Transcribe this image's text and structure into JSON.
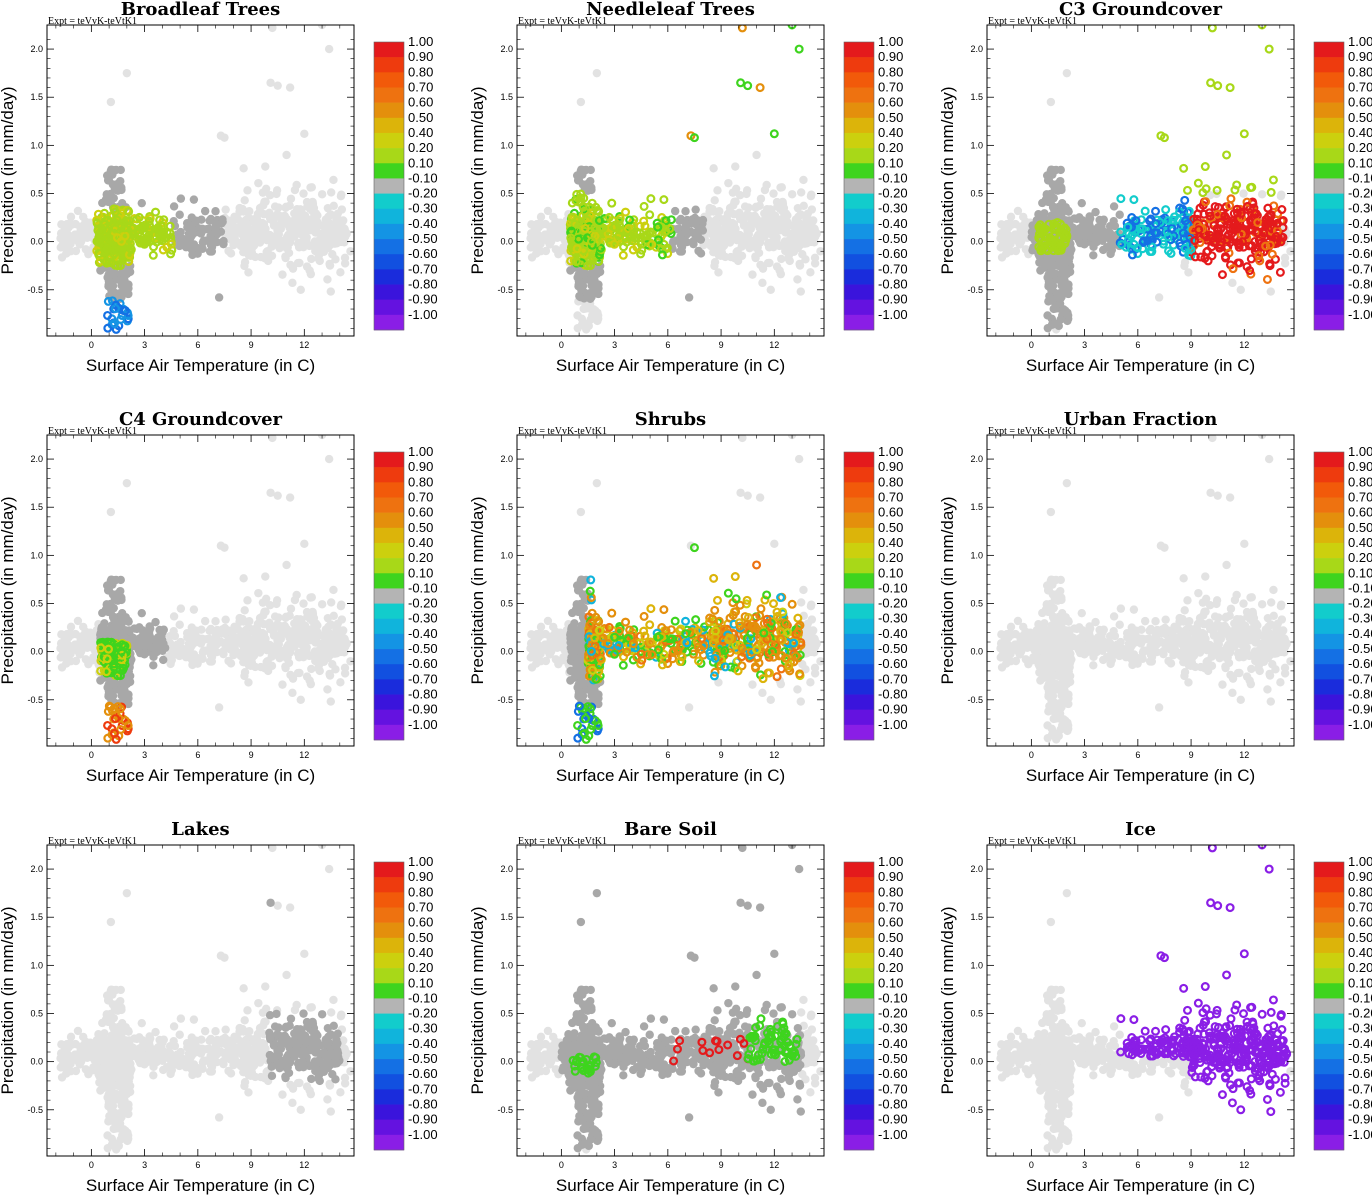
{
  "figure": {
    "expt_label": "Expt = teVvK-teVtK1",
    "xlabel": "Surface Air Temperature (in C)",
    "ylabel": "Precipitation (in mm/day)"
  },
  "colorbar": {
    "labels": [
      "1.00",
      "0.90",
      "0.80",
      "0.70",
      "0.60",
      "0.50",
      "0.40",
      "0.20",
      "0.10",
      "-0.10",
      "-0.20",
      "-0.30",
      "-0.40",
      "-0.50",
      "-0.60",
      "-0.70",
      "-0.80",
      "-0.90",
      "-1.00"
    ],
    "colors": [
      "#e41a1c",
      "#ee3b0e",
      "#f25a0a",
      "#ee7210",
      "#e48f0c",
      "#dcb40a",
      "#ccd00e",
      "#a8d818",
      "#3ed41e",
      "#b4b4b4",
      "#12cccc",
      "#10b4dc",
      "#1494e4",
      "#1470e4",
      "#1250e0",
      "#1a2cdc",
      "#3a14dc",
      "#6412e0",
      "#8a1ee6"
    ]
  },
  "chart_data": [
    {
      "type": "scatter",
      "title": "Broadleaf Trees",
      "xlabel": "Surface Air Temperature (in C)",
      "ylabel": "Precipitation (in mm/day)",
      "xlim": [
        -2.5,
        14.8
      ],
      "ylim": [
        -0.98,
        2.25
      ],
      "xticks": [
        0,
        3,
        6,
        9,
        12
      ],
      "yticks": [
        -0.5,
        0.0,
        0.5,
        1.0,
        1.5,
        2.0
      ],
      "coloring": {
        "colored_points": "cluster near 0–5 C, -0.2–0.3 mm/day; few cyan/blue points below -0.6",
        "dominant_class": "0.20"
      }
    },
    {
      "type": "scatter",
      "title": "Needleleaf Trees",
      "xlabel": "Surface Air Temperature (in C)",
      "ylabel": "Precipitation (in mm/day)",
      "xlim": [
        -2.5,
        14.8
      ],
      "ylim": [
        -0.98,
        2.25
      ],
      "xticks": [
        0,
        3,
        6,
        9,
        12
      ],
      "yticks": [
        -0.5,
        0.0,
        0.5,
        1.0,
        1.5,
        2.0
      ],
      "coloring": {
        "dominant_class": "0.20"
      }
    },
    {
      "type": "scatter",
      "title": "C3 Groundcover",
      "xlabel": "Surface Air Temperature (in C)",
      "ylabel": "Precipitation (in mm/day)",
      "xlim": [
        -2.5,
        14.8
      ],
      "ylim": [
        -0.98,
        2.25
      ],
      "xticks": [
        0,
        3,
        6,
        9,
        12
      ],
      "yticks": [
        -0.5,
        0.0,
        0.5,
        1.0,
        1.5,
        2.0
      ],
      "coloring": {
        "dominant_class": "1.00 for T > 9 C; negative for 5–9 C"
      }
    },
    {
      "type": "scatter",
      "title": "C4 Groundcover",
      "xlabel": "Surface Air Temperature (in C)",
      "ylabel": "Precipitation (in mm/day)",
      "xlim": [
        -2.5,
        14.8
      ],
      "ylim": [
        -0.98,
        2.25
      ],
      "xticks": [
        0,
        3,
        6,
        9,
        12
      ],
      "yticks": [
        -0.5,
        0.0,
        0.5,
        1.0,
        1.5,
        2.0
      ],
      "coloring": {
        "dominant_class": "-0.10 (gray)"
      }
    },
    {
      "type": "scatter",
      "title": "Shrubs",
      "xlabel": "Surface Air Temperature (in C)",
      "ylabel": "Precipitation (in mm/day)",
      "xlim": [
        -2.5,
        14.8
      ],
      "ylim": [
        -0.98,
        2.25
      ],
      "xticks": [
        0,
        3,
        6,
        9,
        12
      ],
      "yticks": [
        -0.5,
        0.0,
        0.5,
        1.0,
        1.5,
        2.0
      ],
      "coloring": {
        "dominant_class": "0.60"
      }
    },
    {
      "type": "scatter",
      "title": "Urban Fraction",
      "xlabel": "Surface Air Temperature (in C)",
      "ylabel": "Precipitation (in mm/day)",
      "xlim": [
        -2.5,
        14.8
      ],
      "ylim": [
        -0.98,
        2.25
      ],
      "xticks": [
        0,
        3,
        6,
        9,
        12
      ],
      "yticks": [
        -0.5,
        0.0,
        0.5,
        1.0,
        1.5,
        2.0
      ],
      "coloring": {
        "dominant_class": "none (all light gray)"
      }
    },
    {
      "type": "scatter",
      "title": "Lakes",
      "xlabel": "Surface Air Temperature (in C)",
      "ylabel": "Precipitation (in mm/day)",
      "xlim": [
        -2.5,
        14.8
      ],
      "ylim": [
        -0.98,
        2.25
      ],
      "xticks": [
        0,
        3,
        6,
        9,
        12
      ],
      "yticks": [
        -0.5,
        0.0,
        0.5,
        1.0,
        1.5,
        2.0
      ],
      "coloring": {
        "dominant_class": "-0.10 (gray) near 10–14 C"
      }
    },
    {
      "type": "scatter",
      "title": "Bare Soil",
      "xlabel": "Surface Air Temperature (in C)",
      "ylabel": "Precipitation (in mm/day)",
      "xlim": [
        -2.5,
        14.8
      ],
      "ylim": [
        -0.98,
        2.25
      ],
      "xticks": [
        0,
        3,
        6,
        9,
        12
      ],
      "yticks": [
        -0.5,
        0.0,
        0.5,
        1.0,
        1.5,
        2.0
      ],
      "coloring": {
        "dominant_class": "-0.10 (gray) with green/red points"
      }
    },
    {
      "type": "scatter",
      "title": "Ice",
      "xlabel": "Surface Air Temperature (in C)",
      "ylabel": "Precipitation (in mm/day)",
      "xlim": [
        -2.5,
        14.8
      ],
      "ylim": [
        -0.98,
        2.25
      ],
      "xticks": [
        0,
        3,
        6,
        9,
        12
      ],
      "yticks": [
        -0.5,
        0.0,
        0.5,
        1.0,
        1.5,
        2.0
      ],
      "coloring": {
        "dominant_class": "-1.00 for T > 5 C"
      }
    }
  ]
}
